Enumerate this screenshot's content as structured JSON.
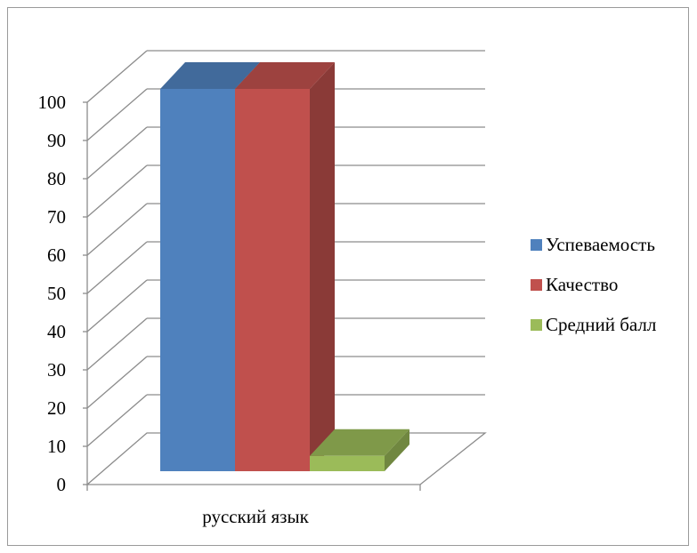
{
  "chart_data": {
    "type": "bar",
    "three_d": true,
    "categories": [
      "русский язык"
    ],
    "series": [
      {
        "name": "Успеваемость",
        "values": [
          100
        ],
        "color": "#4F81BD"
      },
      {
        "name": "Качество",
        "values": [
          100
        ],
        "color": "#C0504D"
      },
      {
        "name": "Средний балл",
        "values": [
          4
        ],
        "color": "#9BBB59"
      }
    ],
    "ylim": [
      0,
      100
    ],
    "yticks": [
      0,
      10,
      20,
      30,
      40,
      50,
      60,
      70,
      80,
      90,
      100
    ],
    "grid": true,
    "legend": "right"
  }
}
